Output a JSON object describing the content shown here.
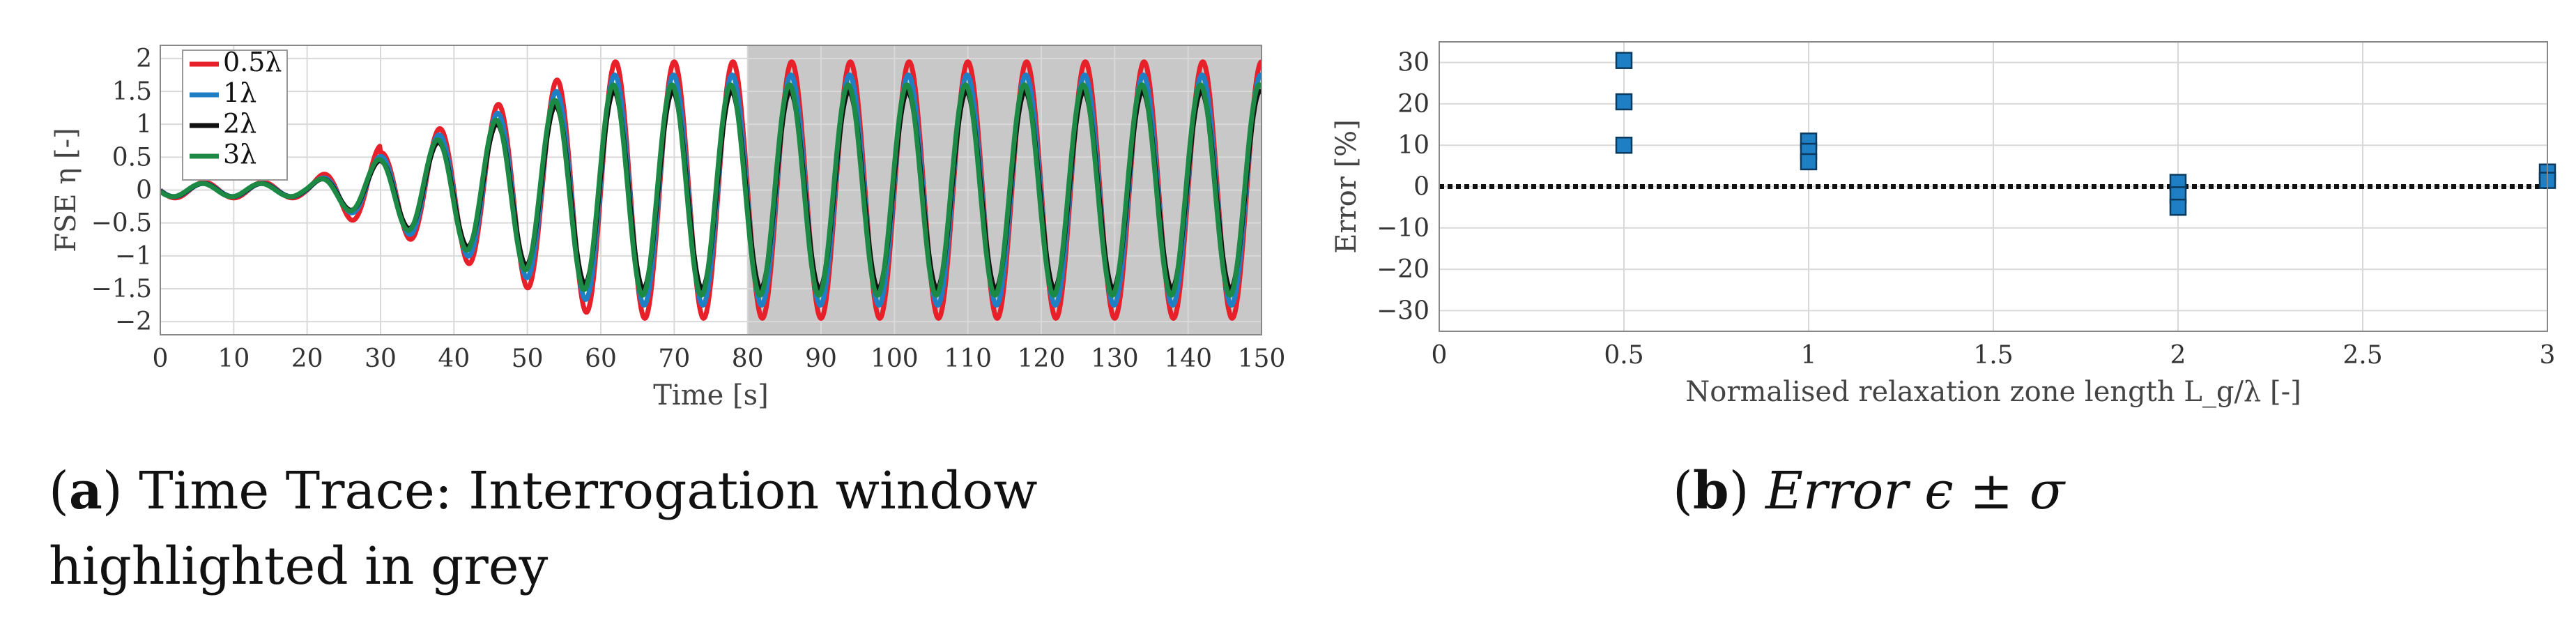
{
  "chart_data": [
    {
      "type": "line",
      "xlabel": "Time [s]",
      "ylabel": "FSE η [-]",
      "xlim": [
        0,
        150
      ],
      "ylim": [
        -2.2,
        2.2
      ],
      "xticks": [
        0,
        10,
        20,
        30,
        40,
        50,
        60,
        70,
        80,
        90,
        100,
        110,
        120,
        130,
        140,
        150
      ],
      "yticks": [
        2,
        1.5,
        1,
        0.5,
        0,
        -0.5,
        -1,
        -1.5,
        -2
      ],
      "ytick_labels": [
        "2",
        "1.5",
        "1",
        "0.5",
        "0",
        "−0.5",
        "−1",
        "−1.5",
        "−2"
      ],
      "grid": true,
      "highlight_window": [
        80,
        150
      ],
      "legend_position": "top-left",
      "wave_period_s": 8,
      "series": [
        {
          "name": "0.5λ",
          "color": "#e8202a",
          "amplitude": 1.95
        },
        {
          "name": "1λ",
          "color": "#1f7fc4",
          "amplitude": 1.75
        },
        {
          "name": "2λ",
          "color": "#111111",
          "amplitude": 1.5
        },
        {
          "name": "3λ",
          "color": "#1c8a45",
          "amplitude": 1.6
        }
      ],
      "caption_label": "a",
      "caption_text": "Time Trace: Interrogation window highlighted in grey"
    },
    {
      "type": "scatter",
      "xlabel": "Normalised relaxation zone length L_g/λ [-]",
      "ylabel": "Error [%]",
      "xlim": [
        0,
        3
      ],
      "ylim": [
        -35,
        35
      ],
      "xticks": [
        0,
        0.5,
        1,
        1.5,
        2,
        2.5,
        3
      ],
      "yticks": [
        30,
        20,
        10,
        0,
        -10,
        -20,
        -30
      ],
      "ytick_labels": [
        "30",
        "20",
        "10",
        "0",
        "−10",
        "−20",
        "−30"
      ],
      "grid": true,
      "zero_line": "dotted",
      "marker_color": "#1f7fc4",
      "points": [
        {
          "x": 0.5,
          "y": 30.5
        },
        {
          "x": 0.5,
          "y": 20.5
        },
        {
          "x": 0.5,
          "y": 10
        },
        {
          "x": 1,
          "y": 11
        },
        {
          "x": 1,
          "y": 8.5
        },
        {
          "x": 1,
          "y": 6
        },
        {
          "x": 2,
          "y": 1
        },
        {
          "x": 2,
          "y": -2
        },
        {
          "x": 2,
          "y": -5
        },
        {
          "x": 3,
          "y": 3.5
        },
        {
          "x": 3,
          "y": 1.5
        }
      ],
      "caption_label": "b",
      "caption_text": "Error ϵ ± σ"
    }
  ]
}
